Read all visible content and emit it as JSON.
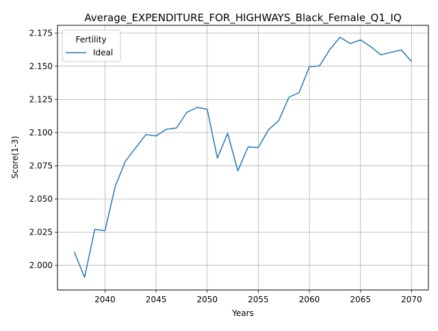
{
  "chart_data": {
    "type": "line",
    "title": "Average_EXPENDITURE_FOR_HIGHWAYS_Black_Female_Q1_IQ",
    "xlabel": "Years",
    "ylabel": "Score(1-3)",
    "xlim": [
      2035.35,
      2071.65
    ],
    "ylim": [
      1.9815,
      2.1808
    ],
    "x_ticks": [
      2040,
      2045,
      2050,
      2055,
      2060,
      2065,
      2070
    ],
    "y_ticks": [
      2.0,
      2.025,
      2.05,
      2.075,
      2.1,
      2.125,
      2.15,
      2.175
    ],
    "grid": true,
    "legend": {
      "title": "Fertility",
      "placement": "top-left"
    },
    "x": [
      2037,
      2038,
      2039,
      2040,
      2041,
      2042,
      2043,
      2044,
      2045,
      2046,
      2047,
      2048,
      2049,
      2050,
      2051,
      2052,
      2053,
      2054,
      2055,
      2056,
      2057,
      2058,
      2059,
      2060,
      2061,
      2062,
      2063,
      2064,
      2065,
      2066,
      2067,
      2068,
      2069,
      2070
    ],
    "series": [
      {
        "name": "Ideal",
        "color": "#1f77b4",
        "values": [
          2.01,
          1.991,
          2.0272,
          2.0262,
          2.0595,
          2.0785,
          2.0885,
          2.0985,
          2.0975,
          2.1025,
          2.1035,
          2.1152,
          2.119,
          2.1176,
          2.0808,
          2.0995,
          2.0712,
          2.0892,
          2.0888,
          2.1022,
          2.109,
          2.1266,
          2.1302,
          2.1496,
          2.1503,
          2.1626,
          2.1718,
          2.1671,
          2.1698,
          2.1648,
          2.1585,
          2.1605,
          2.1622,
          2.1535
        ]
      }
    ]
  }
}
